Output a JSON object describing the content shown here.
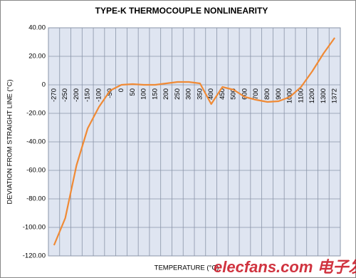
{
  "chart_data": {
    "type": "line",
    "title": "TYPE-K THERMOCOUPLE NONLINEARITY",
    "y_label": "DEVIATION FROM STRAIGHT LINE (°C)",
    "x_label": "TEMPERATURE (°C)",
    "watermark": "elecfans.com 电子发烧友",
    "categories": [
      "-270",
      "-250",
      "-200",
      "-150",
      "-100",
      "-50",
      "0",
      "50",
      "100",
      "150",
      "200",
      "250",
      "300",
      "350",
      "400",
      "450",
      "500",
      "600",
      "700",
      "800",
      "900",
      "1000",
      "1100",
      "1200",
      "1300",
      "1372"
    ],
    "series": [
      {
        "color": "#f08a35",
        "values": [
          -112.5,
          -93.5,
          -56.5,
          -30.5,
          -15.5,
          -4,
          0,
          0.5,
          0,
          0,
          1,
          2,
          2,
          1,
          -13.5,
          -1.5,
          -3.5,
          -8.5,
          -10.5,
          -12,
          -11.5,
          -8.5,
          -1.5,
          9.5,
          22,
          33
        ]
      }
    ],
    "ylim": [
      -120,
      40
    ],
    "yticks": [
      {
        "value": -120,
        "label": "-120.00"
      },
      {
        "value": -100,
        "label": "-100.00"
      },
      {
        "value": -80,
        "label": "-80.00"
      },
      {
        "value": -60,
        "label": "-60.00"
      },
      {
        "value": -40,
        "label": "-40.00"
      },
      {
        "value": -20,
        "label": "-20.00"
      },
      0,
      {
        "value": 20,
        "label": "20.00"
      },
      {
        "value": 40,
        "label": "40.00"
      }
    ],
    "grid": true,
    "plot_background": "#dfe5f1"
  }
}
